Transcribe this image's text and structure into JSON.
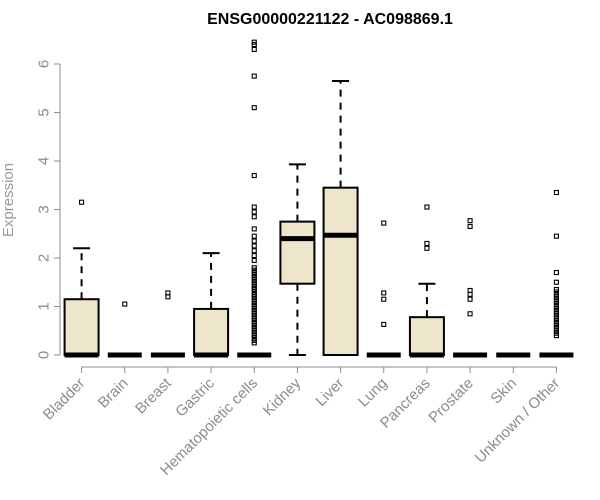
{
  "chart_data": {
    "type": "box",
    "title": "ENSG00000221122 - AC098869.1",
    "xlabel": "",
    "ylabel": "Expression",
    "ylim": [
      0,
      6.5
    ],
    "yticks": [
      "0",
      "1",
      "2",
      "3",
      "4",
      "5",
      "6"
    ],
    "box_fill": "#ede6cc",
    "categories": [
      "Bladder",
      "Brain",
      "Breast",
      "Gastric",
      "Hematopoietic cells",
      "Kidney",
      "Liver",
      "Lung",
      "Pancreas",
      "Prostate",
      "Skin",
      "Unknown / Other"
    ],
    "boxes": [
      {
        "q1": 0,
        "median": 0,
        "q3": 1.15,
        "whisker_low": 0,
        "whisker_high": 2.2,
        "outliers": [
          3.15
        ]
      },
      {
        "q1": 0,
        "median": 0,
        "q3": 0,
        "whisker_low": 0,
        "whisker_high": 0,
        "outliers": [
          1.05
        ]
      },
      {
        "q1": 0,
        "median": 0,
        "q3": 0,
        "whisker_low": 0,
        "whisker_high": 0,
        "outliers": [
          1.2,
          1.28
        ]
      },
      {
        "q1": 0,
        "median": 0,
        "q3": 0.95,
        "whisker_low": 0,
        "whisker_high": 2.1,
        "outliers": []
      },
      {
        "q1": 0,
        "median": 0,
        "q3": 0,
        "whisker_low": 0,
        "whisker_high": 0,
        "outliers": [
          0.25,
          0.3,
          0.35,
          0.4,
          0.45,
          0.5,
          0.55,
          0.6,
          0.65,
          0.7,
          0.75,
          0.8,
          0.85,
          0.9,
          0.95,
          1.0,
          1.05,
          1.1,
          1.15,
          1.2,
          1.25,
          1.3,
          1.35,
          1.4,
          1.45,
          1.5,
          1.55,
          1.6,
          1.65,
          1.7,
          1.75,
          1.8,
          1.95,
          2.05,
          2.15,
          2.25,
          2.35,
          2.45,
          2.6,
          2.85,
          2.95,
          3.05,
          3.7,
          5.1,
          5.75,
          6.3,
          6.4,
          6.45
        ]
      },
      {
        "q1": 1.47,
        "median": 2.4,
        "q3": 2.75,
        "whisker_low": 0,
        "whisker_high": 3.93,
        "outliers": []
      },
      {
        "q1": 0,
        "median": 2.47,
        "q3": 3.45,
        "whisker_low": 0,
        "whisker_high": 5.65,
        "outliers": []
      },
      {
        "q1": 0,
        "median": 0,
        "q3": 0,
        "whisker_low": 0,
        "whisker_high": 0,
        "outliers": [
          0.63,
          1.15,
          1.28,
          2.72
        ]
      },
      {
        "q1": 0,
        "median": 0,
        "q3": 0.78,
        "whisker_low": 0,
        "whisker_high": 1.47,
        "outliers": [
          2.2,
          2.3,
          3.05
        ]
      },
      {
        "q1": 0,
        "median": 0,
        "q3": 0,
        "whisker_low": 0,
        "whisker_high": 0,
        "outliers": [
          0.85,
          1.15,
          1.25,
          1.33,
          2.65,
          2.77
        ]
      },
      {
        "q1": 0,
        "median": 0,
        "q3": 0,
        "whisker_low": 0,
        "whisker_high": 0,
        "outliers": []
      },
      {
        "q1": 0,
        "median": 0,
        "q3": 0,
        "whisker_low": 0,
        "whisker_high": 0,
        "outliers": [
          0.4,
          0.45,
          0.5,
          0.55,
          0.6,
          0.65,
          0.7,
          0.75,
          0.8,
          0.85,
          0.9,
          0.95,
          1.0,
          1.05,
          1.1,
          1.15,
          1.2,
          1.25,
          1.3,
          1.35,
          1.5,
          1.7,
          2.45,
          3.35
        ]
      }
    ]
  }
}
